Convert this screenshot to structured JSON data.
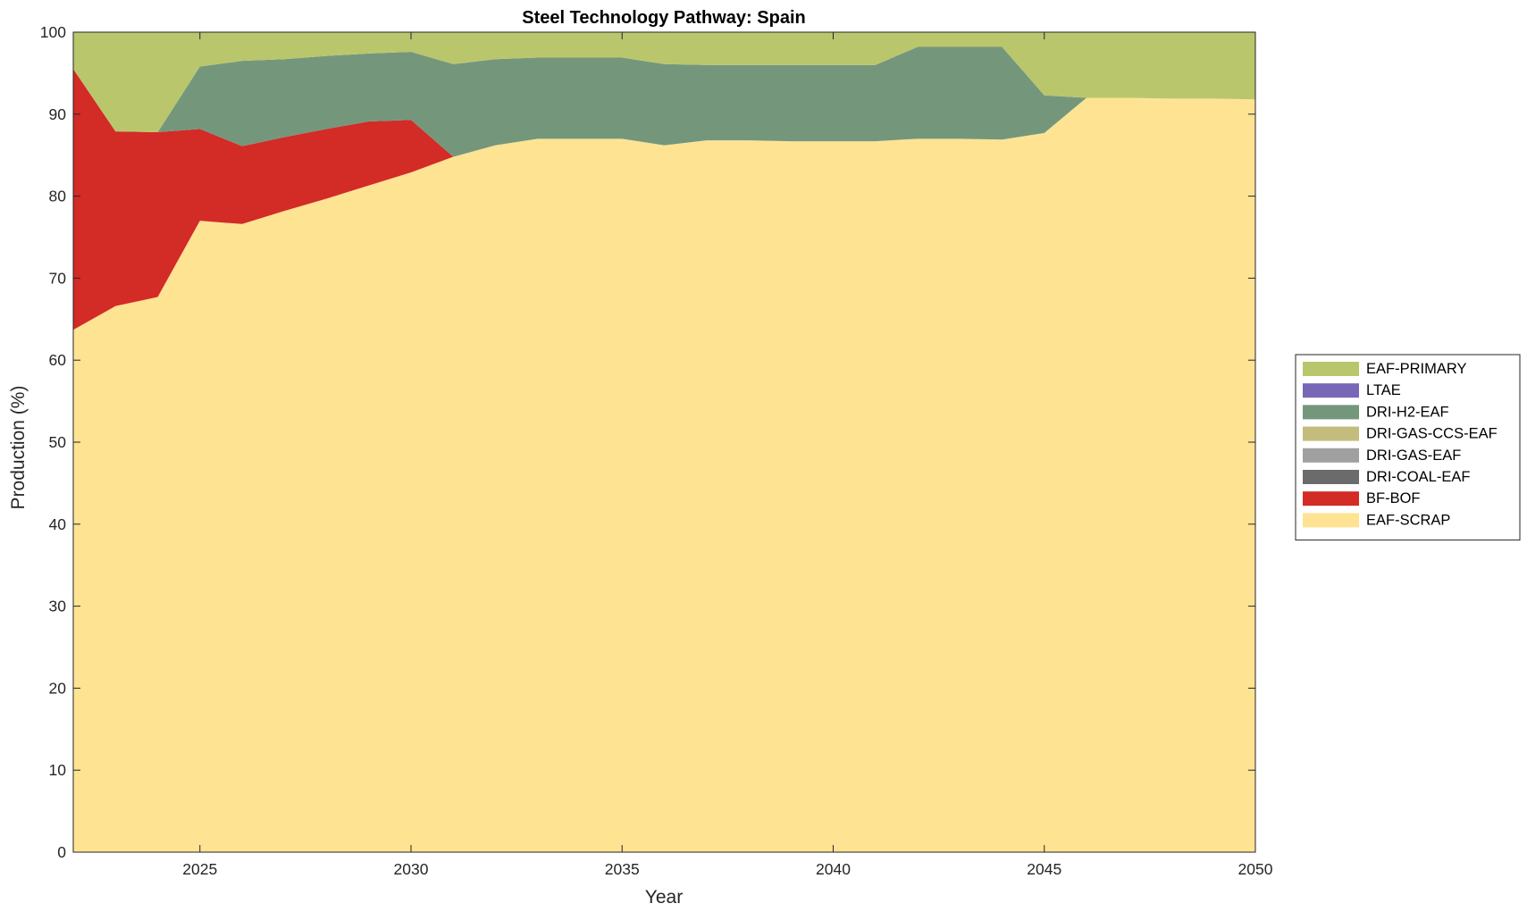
{
  "chart_data": {
    "type": "area",
    "stacked": true,
    "title": "Steel Technology Pathway: Spain",
    "xlabel": "Year",
    "ylabel": "Production (%)",
    "xlim": [
      2022,
      2050
    ],
    "ylim": [
      0,
      100
    ],
    "xticks": [
      2025,
      2030,
      2035,
      2040,
      2045,
      2050
    ],
    "yticks": [
      0,
      10,
      20,
      30,
      40,
      50,
      60,
      70,
      80,
      90,
      100
    ],
    "grid": false,
    "legend_position": "outside-right",
    "x": [
      2022,
      2023,
      2024,
      2025,
      2026,
      2027,
      2028,
      2029,
      2030,
      2031,
      2032,
      2033,
      2034,
      2035,
      2036,
      2037,
      2038,
      2039,
      2040,
      2041,
      2042,
      2043,
      2044,
      2045,
      2046,
      2047,
      2048,
      2049,
      2050
    ],
    "series": [
      {
        "name": "EAF-SCRAP",
        "color": "#fee393",
        "values": [
          63.7,
          66.6,
          67.7,
          77.0,
          76.6,
          78.2,
          79.7,
          81.3,
          82.9,
          84.8,
          86.2,
          87.0,
          87.0,
          87.0,
          86.2,
          86.8,
          86.8,
          86.7,
          86.7,
          86.7,
          87.0,
          87.0,
          86.9,
          87.7,
          92.0,
          92.0,
          91.9,
          91.9,
          91.8
        ]
      },
      {
        "name": "BF-BOF",
        "color": "#d32b26",
        "values": [
          31.8,
          21.3,
          20.1,
          11.2,
          9.5,
          9.0,
          8.5,
          7.8,
          6.4,
          0,
          0,
          0,
          0,
          0,
          0,
          0,
          0,
          0,
          0,
          0,
          0,
          0,
          0,
          0,
          0,
          0,
          0,
          0,
          0
        ]
      },
      {
        "name": "DRI-COAL-EAF",
        "color": "#6b6b6b",
        "values": [
          0,
          0,
          0,
          0,
          0,
          0,
          0,
          0,
          0,
          0,
          0,
          0,
          0,
          0,
          0,
          0,
          0,
          0,
          0,
          0,
          0,
          0,
          0,
          0,
          0,
          0,
          0,
          0,
          0
        ]
      },
      {
        "name": "DRI-GAS-EAF",
        "color": "#a0a0a0",
        "values": [
          0,
          0,
          0,
          0,
          0,
          0,
          0,
          0,
          0,
          0,
          0,
          0,
          0,
          0,
          0,
          0,
          0,
          0,
          0,
          0,
          0,
          0,
          0,
          0,
          0,
          0,
          0,
          0,
          0
        ]
      },
      {
        "name": "DRI-GAS-CCS-EAF",
        "color": "#c4bc7c",
        "values": [
          0,
          0,
          0,
          0,
          0,
          0,
          0,
          0,
          0,
          0,
          0,
          0,
          0,
          0,
          0,
          0,
          0,
          0,
          0,
          0,
          0,
          0,
          0,
          0,
          0,
          0,
          0,
          0,
          0
        ]
      },
      {
        "name": "DRI-H2-EAF",
        "color": "#74977c",
        "values": [
          0,
          0,
          0,
          7.6,
          10.4,
          9.5,
          8.9,
          8.3,
          8.3,
          11.3,
          10.5,
          9.9,
          9.9,
          9.9,
          9.9,
          9.2,
          9.2,
          9.3,
          9.3,
          9.3,
          11.2,
          11.2,
          11.3,
          4.6,
          0,
          0,
          0,
          0,
          0
        ]
      },
      {
        "name": "LTAE",
        "color": "#7767b6",
        "values": [
          0,
          0,
          0,
          0,
          0,
          0,
          0,
          0,
          0,
          0,
          0,
          0,
          0,
          0,
          0,
          0,
          0,
          0,
          0,
          0,
          0,
          0,
          0,
          0,
          0,
          0,
          0,
          0,
          0
        ]
      },
      {
        "name": "EAF-PRIMARY",
        "color": "#bac66c",
        "values": [
          4.5,
          12.1,
          12.2,
          4.2,
          3.5,
          3.3,
          2.9,
          2.6,
          2.4,
          3.9,
          3.3,
          3.1,
          3.1,
          3.1,
          3.9,
          4.0,
          4.0,
          4.0,
          4.0,
          4.0,
          1.8,
          1.8,
          1.8,
          7.7,
          8.0,
          8.0,
          8.1,
          8.1,
          8.2
        ]
      }
    ],
    "legend_order": [
      "EAF-PRIMARY",
      "LTAE",
      "DRI-H2-EAF",
      "DRI-GAS-CCS-EAF",
      "DRI-GAS-EAF",
      "DRI-COAL-EAF",
      "BF-BOF",
      "EAF-SCRAP"
    ]
  }
}
